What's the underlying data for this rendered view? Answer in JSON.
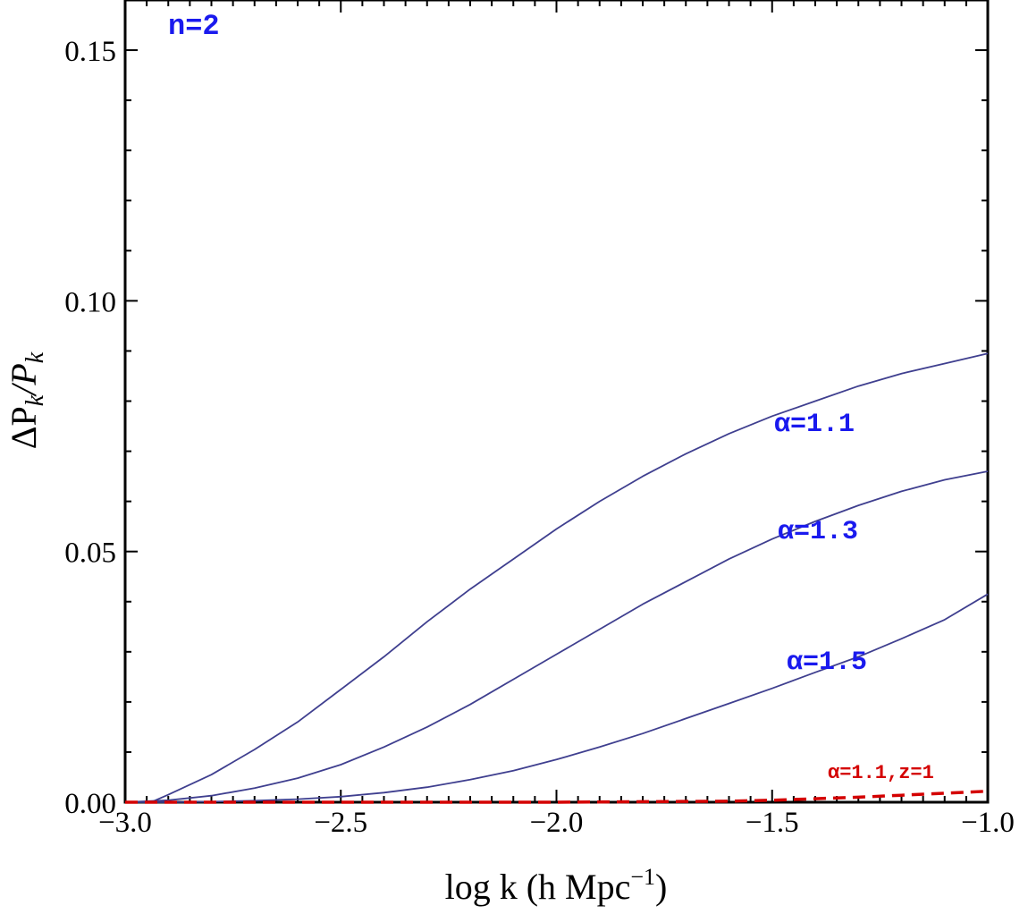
{
  "chart_data": {
    "type": "line",
    "panel_label": "n=2",
    "xlabel": "log k (h Mpc",
    "xlabel_sup": "−1",
    "xlabel_close": ")",
    "ylabel_delta": "ΔP",
    "ylabel_k1": "k",
    "ylabel_slash": "/P",
    "ylabel_k2": "k",
    "xlim": [
      -3.0,
      -1.0
    ],
    "ylim": [
      0.0,
      0.16
    ],
    "x_ticks": [
      -3.0,
      -2.5,
      -2.0,
      -1.5,
      -1.0
    ],
    "x_tick_labels": [
      "−3.0",
      "−2.5",
      "−2.0",
      "−1.5",
      "−1.0"
    ],
    "y_ticks": [
      0.0,
      0.05,
      0.1,
      0.15
    ],
    "y_tick_labels": [
      "0.00",
      "0.05",
      "0.10",
      "0.15"
    ],
    "colors": {
      "series": "#3f3f8f",
      "label": "#1a1aee",
      "dashed": "#d40000"
    },
    "series": [
      {
        "name": "α=1.1",
        "style": "solid",
        "x": [
          -2.94,
          -2.9,
          -2.8,
          -2.7,
          -2.6,
          -2.5,
          -2.4,
          -2.3,
          -2.2,
          -2.1,
          -2.0,
          -1.9,
          -1.8,
          -1.7,
          -1.6,
          -1.5,
          -1.4,
          -1.3,
          -1.2,
          -1.1,
          -1.0
        ],
        "y": [
          0.0,
          0.0015,
          0.0055,
          0.0105,
          0.016,
          0.0225,
          0.029,
          0.036,
          0.0425,
          0.0485,
          0.0545,
          0.06,
          0.065,
          0.0695,
          0.0735,
          0.077,
          0.08,
          0.083,
          0.0855,
          0.0875,
          0.0895
        ]
      },
      {
        "name": "α=1.3",
        "style": "solid",
        "x": [
          -3.0,
          -2.9,
          -2.8,
          -2.7,
          -2.6,
          -2.5,
          -2.4,
          -2.3,
          -2.2,
          -2.1,
          -2.0,
          -1.9,
          -1.8,
          -1.7,
          -1.6,
          -1.5,
          -1.4,
          -1.3,
          -1.2,
          -1.1,
          -1.0
        ],
        "y": [
          0.0,
          0.0004,
          0.0013,
          0.0028,
          0.0048,
          0.0075,
          0.011,
          0.015,
          0.0195,
          0.0245,
          0.0295,
          0.0345,
          0.0395,
          0.044,
          0.0485,
          0.0525,
          0.056,
          0.0592,
          0.062,
          0.0643,
          0.066
        ]
      },
      {
        "name": "α=1.5",
        "style": "solid",
        "x": [
          -3.0,
          -2.9,
          -2.8,
          -2.7,
          -2.6,
          -2.5,
          -2.4,
          -2.3,
          -2.2,
          -2.1,
          -2.0,
          -1.9,
          -1.8,
          -1.7,
          -1.6,
          -1.5,
          -1.4,
          -1.3,
          -1.2,
          -1.1,
          -1.0
        ],
        "y": [
          0.0,
          0.0,
          0.0001,
          0.0003,
          0.0006,
          0.0011,
          0.0019,
          0.003,
          0.0045,
          0.0063,
          0.0085,
          0.011,
          0.0137,
          0.0167,
          0.0197,
          0.0227,
          0.0259,
          0.029,
          0.0326,
          0.0364,
          0.0415
        ]
      },
      {
        "name": "α=1.1,z=1",
        "style": "dashed",
        "x": [
          -3.0,
          -2.5,
          -2.0,
          -1.8,
          -1.6,
          -1.5,
          -1.4,
          -1.3,
          -1.2,
          -1.1,
          -1.0
        ],
        "y": [
          0.0,
          0.0,
          0.0,
          0.0001,
          0.0002,
          0.0004,
          0.0007,
          0.001,
          0.0014,
          0.0018,
          0.0022
        ]
      }
    ]
  }
}
